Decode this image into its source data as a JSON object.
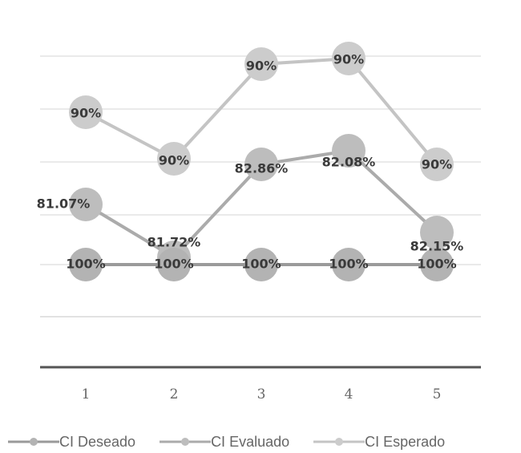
{
  "chart_data": {
    "type": "line",
    "categories": [
      "1",
      "2",
      "3",
      "4",
      "5"
    ],
    "series": [
      {
        "name": "CI Deseado",
        "values": [
          100,
          100,
          100,
          100,
          100
        ],
        "labels": [
          "100%",
          "100%",
          "100%",
          "100%",
          "100%"
        ],
        "color": "#9a9a9a",
        "marker_color": "#b3b3b3"
      },
      {
        "name": "CI Evaluado",
        "values": [
          81.07,
          81.72,
          82.86,
          82.08,
          82.15
        ],
        "labels": [
          "81.07%",
          "81.72%",
          "82.86%",
          "82.08%",
          "82.15%"
        ],
        "color": "#ababab",
        "marker_color": "#bdbdbd"
      },
      {
        "name": "CI Esperado",
        "values": [
          90,
          90,
          90,
          90,
          90
        ],
        "labels": [
          "90%",
          "90%",
          "90%",
          "90%",
          "90%"
        ],
        "color": "#c4c4c4",
        "marker_color": "#cccccc"
      }
    ],
    "grid": true,
    "legend_position": "bottom"
  }
}
